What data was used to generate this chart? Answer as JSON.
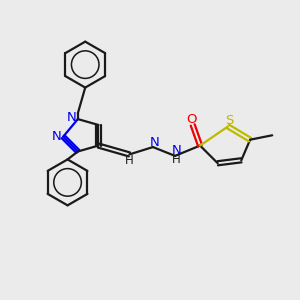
{
  "background_color": "#ebebeb",
  "bond_color": "#1a1a1a",
  "N_color": "#0000ee",
  "O_color": "#ee0000",
  "S_color": "#bbbb00",
  "line_width": 1.6,
  "font_size": 9.5,
  "figsize": [
    3.0,
    3.0
  ],
  "dpi": 100,
  "xlim": [
    0,
    10
  ],
  "ylim": [
    0,
    10
  ]
}
